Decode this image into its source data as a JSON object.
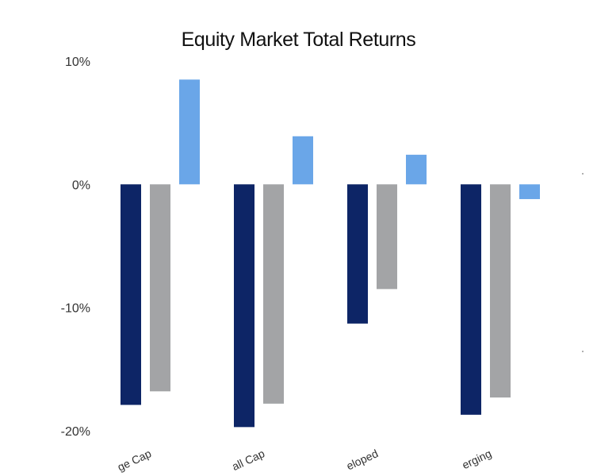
{
  "chart_data": {
    "type": "bar",
    "title": "Equity Market Total Returns",
    "categories": [
      "ge Cap",
      "all Cap",
      "eloped",
      "erging"
    ],
    "series": [
      {
        "values": [
          -17.9,
          -19.7,
          -11.3,
          -18.7
        ],
        "color": "#0d2566"
      },
      {
        "values": [
          -16.8,
          -17.8,
          -8.5,
          -17.3
        ],
        "color": "#a3a4a6"
      },
      {
        "values": [
          8.5,
          3.9,
          2.4,
          -1.2
        ],
        "color": "#6aa6e8"
      }
    ],
    "yticks": [
      "10%",
      "0%",
      "-10%",
      "-20%"
    ],
    "ytick_values": [
      10,
      0,
      -10,
      -20
    ],
    "ylim": [
      -20,
      10
    ],
    "xlabel": "",
    "ylabel": "",
    "grid": false,
    "legend": "none"
  }
}
